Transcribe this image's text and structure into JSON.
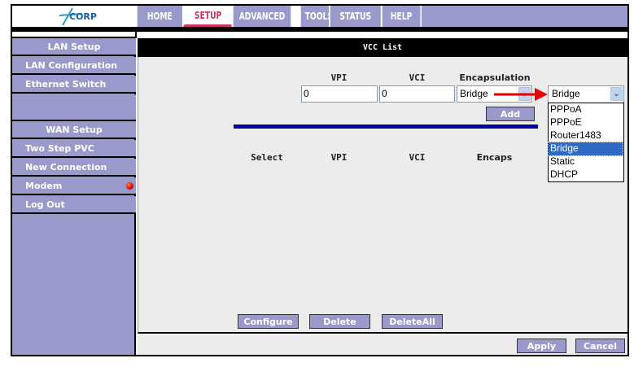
{
  "logo": "ACORP",
  "nav": {
    "tabs": [
      {
        "label": "HOME"
      },
      {
        "label": "SETUP",
        "active": true
      },
      {
        "label": "ADVANCED"
      },
      {
        "label": "TOOLS"
      },
      {
        "label": "STATUS"
      },
      {
        "label": "HELP"
      }
    ]
  },
  "sidebar": {
    "items": [
      {
        "label": "LAN Setup"
      },
      {
        "label": "LAN Configuration"
      },
      {
        "label": "Ethernet Switch"
      },
      {
        "label": ""
      },
      {
        "label": "WAN Setup"
      },
      {
        "label": "Two Step PVC"
      },
      {
        "label": "New Connection"
      },
      {
        "label": "Modem"
      },
      {
        "label": "Log Out"
      }
    ]
  },
  "main": {
    "title": "VCC List",
    "form": {
      "vpi_label": "VPI",
      "vci_label": "VCI",
      "encap_label": "Encapsulation",
      "vpi_value": "0",
      "vci_value": "0",
      "encap_value": "Bridge",
      "add_label": "Add"
    },
    "table": {
      "headers": [
        "Select",
        "VPI",
        "VCI",
        "Encaps"
      ]
    },
    "buttons": {
      "configure": "Configure",
      "delete": "Delete",
      "delete_all": "DeleteAll"
    },
    "footer": {
      "apply": "Apply",
      "cancel": "Cancel"
    },
    "dropdown": {
      "selected": "Bridge",
      "options": [
        "PPPoA",
        "PPPoE",
        "Router1483",
        "Bridge",
        "Static",
        "DHCP"
      ],
      "highlighted": "Bridge"
    }
  },
  "colors": {
    "nav": "#9999cc",
    "active": "#cc3366",
    "divider": "#000099",
    "highlight": "#316ac5",
    "status_led": "#dd0000"
  }
}
